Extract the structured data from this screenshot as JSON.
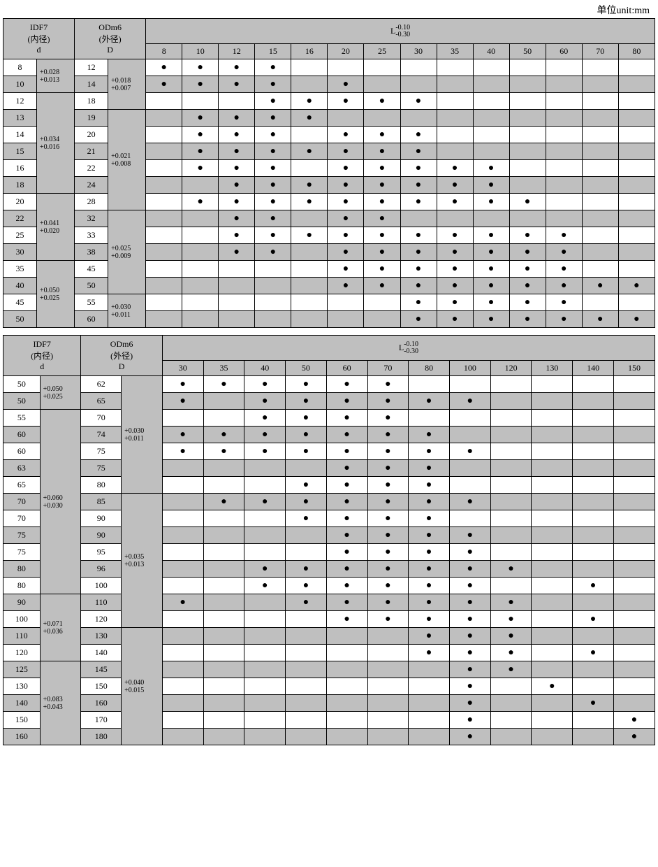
{
  "unit_label": "单位unit:mm",
  "colors": {
    "grey": "#bfbfbf",
    "white": "#ffffff",
    "border": "#000000"
  },
  "headers": {
    "id": {
      "l1": "IDF7",
      "l2": "(内径)",
      "l3": "d"
    },
    "od": {
      "l1": "ODm6",
      "l2": "(外径)",
      "l3": "D"
    },
    "L_label": "L",
    "L_tol_up": "-0.10",
    "L_tol_lo": "-0.30"
  },
  "dot_char": "●",
  "t1": {
    "L_values": [
      "8",
      "10",
      "12",
      "15",
      "16",
      "20",
      "25",
      "30",
      "35",
      "40",
      "50",
      "60",
      "70",
      "80"
    ],
    "id_tol_groups": [
      {
        "tol": "+0.028\n+0.013",
        "span": 2
      },
      {
        "tol": "+0.034\n+0.016",
        "span": 6
      },
      {
        "tol": "+0.041\n+0.020",
        "span": 4
      },
      {
        "tol": "+0.050\n+0.025",
        "span": 4
      }
    ],
    "od_tol_groups": [
      {
        "tol": "+0.018\n+0.007",
        "span": 3
      },
      {
        "tol": "+0.021\n+0.008",
        "span": 6
      },
      {
        "tol": "+0.025\n+0.009",
        "span": 5
      },
      {
        "tol": "+0.030\n+0.011",
        "span": 2
      }
    ],
    "rows": [
      {
        "d": "8",
        "D": "12",
        "shade": "w",
        "dots": [
          1,
          1,
          1,
          1,
          0,
          0,
          0,
          0,
          0,
          0,
          0,
          0,
          0,
          0
        ]
      },
      {
        "d": "10",
        "D": "14",
        "shade": "g",
        "dots": [
          1,
          1,
          1,
          1,
          0,
          1,
          0,
          0,
          0,
          0,
          0,
          0,
          0,
          0
        ]
      },
      {
        "d": "12",
        "D": "18",
        "shade": "w",
        "dots": [
          0,
          0,
          0,
          1,
          1,
          1,
          1,
          1,
          0,
          0,
          0,
          0,
          0,
          0
        ]
      },
      {
        "d": "13",
        "D": "19",
        "shade": "g",
        "dots": [
          0,
          1,
          1,
          1,
          1,
          0,
          0,
          0,
          0,
          0,
          0,
          0,
          0,
          0
        ]
      },
      {
        "d": "14",
        "D": "20",
        "shade": "w",
        "dots": [
          0,
          1,
          1,
          1,
          0,
          1,
          1,
          1,
          0,
          0,
          0,
          0,
          0,
          0
        ]
      },
      {
        "d": "15",
        "D": "21",
        "shade": "g",
        "dots": [
          0,
          1,
          1,
          1,
          1,
          1,
          1,
          1,
          0,
          0,
          0,
          0,
          0,
          0
        ]
      },
      {
        "d": "16",
        "D": "22",
        "shade": "w",
        "dots": [
          0,
          1,
          1,
          1,
          0,
          1,
          1,
          1,
          1,
          1,
          0,
          0,
          0,
          0
        ]
      },
      {
        "d": "18",
        "D": "24",
        "shade": "g",
        "dots": [
          0,
          0,
          1,
          1,
          1,
          1,
          1,
          1,
          1,
          1,
          0,
          0,
          0,
          0
        ]
      },
      {
        "d": "20",
        "D": "28",
        "shade": "w",
        "dots": [
          0,
          1,
          1,
          1,
          1,
          1,
          1,
          1,
          1,
          1,
          1,
          0,
          0,
          0
        ]
      },
      {
        "d": "22",
        "D": "32",
        "shade": "g",
        "dots": [
          0,
          0,
          1,
          1,
          0,
          1,
          1,
          0,
          0,
          0,
          0,
          0,
          0,
          0
        ]
      },
      {
        "d": "25",
        "D": "33",
        "shade": "w",
        "dots": [
          0,
          0,
          1,
          1,
          1,
          1,
          1,
          1,
          1,
          1,
          1,
          1,
          0,
          0
        ]
      },
      {
        "d": "30",
        "D": "38",
        "shade": "g",
        "dots": [
          0,
          0,
          1,
          1,
          0,
          1,
          1,
          1,
          1,
          1,
          1,
          1,
          0,
          0
        ]
      },
      {
        "d": "35",
        "D": "45",
        "shade": "w",
        "dots": [
          0,
          0,
          0,
          0,
          0,
          1,
          1,
          1,
          1,
          1,
          1,
          1,
          0,
          0
        ]
      },
      {
        "d": "40",
        "D": "50",
        "shade": "g",
        "dots": [
          0,
          0,
          0,
          0,
          0,
          1,
          1,
          1,
          1,
          1,
          1,
          1,
          1,
          1
        ]
      },
      {
        "d": "45",
        "D": "55",
        "shade": "w",
        "dots": [
          0,
          0,
          0,
          0,
          0,
          0,
          0,
          1,
          1,
          1,
          1,
          1,
          0,
          0
        ]
      },
      {
        "d": "50",
        "D": "60",
        "shade": "g",
        "dots": [
          0,
          0,
          0,
          0,
          0,
          0,
          0,
          1,
          1,
          1,
          1,
          1,
          1,
          1
        ]
      }
    ]
  },
  "t2": {
    "L_values": [
      "30",
      "35",
      "40",
      "50",
      "60",
      "70",
      "80",
      "100",
      "120",
      "130",
      "140",
      "150"
    ],
    "id_tol_groups": [
      {
        "tol": "+0.050\n+0.025",
        "span": 2
      },
      {
        "tol": "+0.060\n+0.030",
        "span": 11
      },
      {
        "tol": "+0.071\n+0.036",
        "span": 4
      },
      {
        "tol": "+0.083\n+0.043",
        "span": 5
      }
    ],
    "od_tol_groups": [
      {
        "tol": "+0.030\n+0.011",
        "span": 7
      },
      {
        "tol": "+0.035\n+0.013",
        "span": 8
      },
      {
        "tol": "+0.040\n+0.015",
        "span": 7
      }
    ],
    "rows": [
      {
        "d": "50",
        "D": "62",
        "shade": "w",
        "dots": [
          1,
          1,
          1,
          1,
          1,
          1,
          0,
          0,
          0,
          0,
          0,
          0
        ]
      },
      {
        "d": "50",
        "D": "65",
        "shade": "g",
        "dots": [
          1,
          0,
          1,
          1,
          1,
          1,
          1,
          1,
          0,
          0,
          0,
          0
        ]
      },
      {
        "d": "55",
        "D": "70",
        "shade": "w",
        "dots": [
          0,
          0,
          1,
          1,
          1,
          1,
          0,
          0,
          0,
          0,
          0,
          0
        ]
      },
      {
        "d": "60",
        "D": "74",
        "shade": "g",
        "dots": [
          1,
          1,
          1,
          1,
          1,
          1,
          1,
          0,
          0,
          0,
          0,
          0
        ]
      },
      {
        "d": "60",
        "D": "75",
        "shade": "w",
        "dots": [
          1,
          1,
          1,
          1,
          1,
          1,
          1,
          1,
          0,
          0,
          0,
          0
        ]
      },
      {
        "d": "63",
        "D": "75",
        "shade": "g",
        "dots": [
          0,
          0,
          0,
          0,
          1,
          1,
          1,
          0,
          0,
          0,
          0,
          0
        ]
      },
      {
        "d": "65",
        "D": "80",
        "shade": "w",
        "dots": [
          0,
          0,
          0,
          1,
          1,
          1,
          1,
          0,
          0,
          0,
          0,
          0
        ]
      },
      {
        "d": "70",
        "D": "85",
        "shade": "g",
        "dots": [
          0,
          1,
          1,
          1,
          1,
          1,
          1,
          1,
          0,
          0,
          0,
          0
        ]
      },
      {
        "d": "70",
        "D": "90",
        "shade": "w",
        "dots": [
          0,
          0,
          0,
          1,
          1,
          1,
          1,
          0,
          0,
          0,
          0,
          0
        ]
      },
      {
        "d": "75",
        "D": "90",
        "shade": "g",
        "dots": [
          0,
          0,
          0,
          0,
          1,
          1,
          1,
          1,
          0,
          0,
          0,
          0
        ]
      },
      {
        "d": "75",
        "D": "95",
        "shade": "w",
        "dots": [
          0,
          0,
          0,
          0,
          1,
          1,
          1,
          1,
          0,
          0,
          0,
          0
        ]
      },
      {
        "d": "80",
        "D": "96",
        "shade": "g",
        "dots": [
          0,
          0,
          1,
          1,
          1,
          1,
          1,
          1,
          1,
          0,
          0,
          0
        ]
      },
      {
        "d": "80",
        "D": "100",
        "shade": "w",
        "dots": [
          0,
          0,
          1,
          1,
          1,
          1,
          1,
          1,
          0,
          0,
          1,
          0
        ]
      },
      {
        "d": "90",
        "D": "110",
        "shade": "g",
        "dots": [
          1,
          0,
          0,
          1,
          1,
          1,
          1,
          1,
          1,
          0,
          0,
          0
        ]
      },
      {
        "d": "100",
        "D": "120",
        "shade": "w",
        "dots": [
          0,
          0,
          0,
          0,
          1,
          1,
          1,
          1,
          1,
          0,
          1,
          0
        ]
      },
      {
        "d": "110",
        "D": "130",
        "shade": "g",
        "dots": [
          0,
          0,
          0,
          0,
          0,
          0,
          1,
          1,
          1,
          0,
          0,
          0
        ]
      },
      {
        "d": "120",
        "D": "140",
        "shade": "w",
        "dots": [
          0,
          0,
          0,
          0,
          0,
          0,
          1,
          1,
          1,
          0,
          1,
          0
        ]
      },
      {
        "d": "125",
        "D": "145",
        "shade": "g",
        "dots": [
          0,
          0,
          0,
          0,
          0,
          0,
          0,
          1,
          1,
          0,
          0,
          0
        ]
      },
      {
        "d": "130",
        "D": "150",
        "shade": "w",
        "dots": [
          0,
          0,
          0,
          0,
          0,
          0,
          0,
          1,
          0,
          1,
          0,
          0
        ]
      },
      {
        "d": "140",
        "D": "160",
        "shade": "g",
        "dots": [
          0,
          0,
          0,
          0,
          0,
          0,
          0,
          1,
          0,
          0,
          1,
          0
        ]
      },
      {
        "d": "150",
        "D": "170",
        "shade": "w",
        "dots": [
          0,
          0,
          0,
          0,
          0,
          0,
          0,
          1,
          0,
          0,
          0,
          1
        ]
      },
      {
        "d": "160",
        "D": "180",
        "shade": "g",
        "dots": [
          0,
          0,
          0,
          0,
          0,
          0,
          0,
          1,
          0,
          0,
          0,
          1
        ]
      }
    ]
  }
}
